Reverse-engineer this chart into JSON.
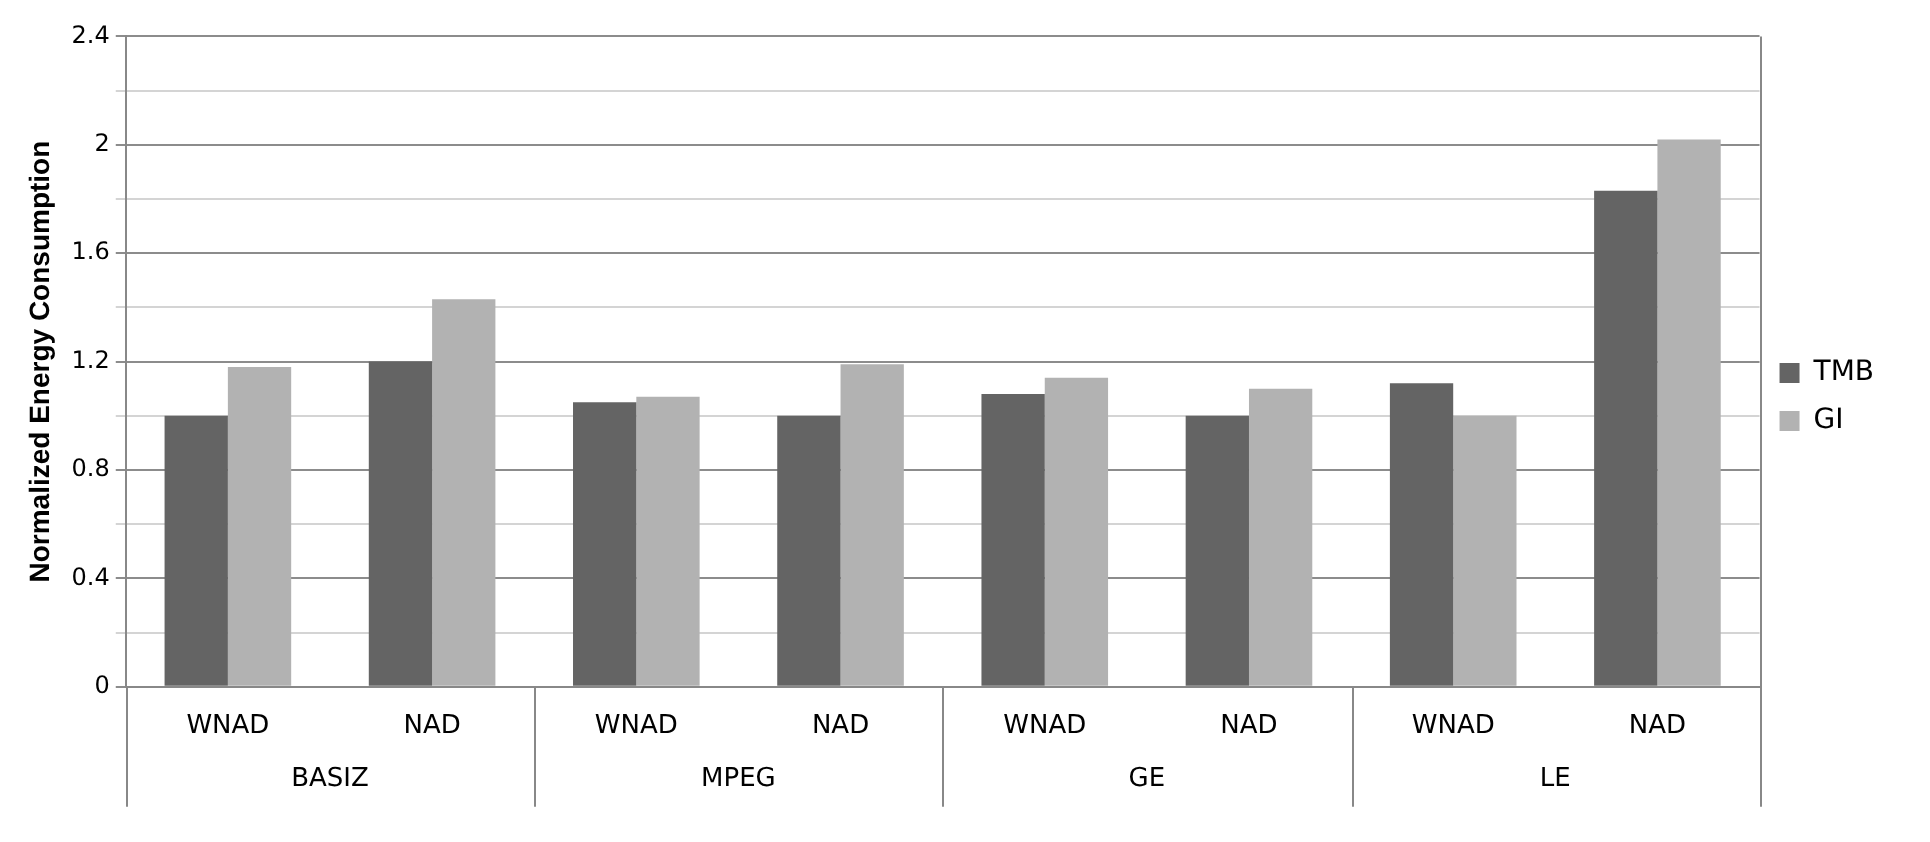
{
  "chart_data": {
    "type": "bar",
    "ylabel": "Normalized Energy Consumption",
    "categories": [
      "WNAD",
      "NAD",
      "WNAD",
      "NAD",
      "WNAD",
      "NAD",
      "WNAD",
      "NAD"
    ],
    "series": [
      {
        "name": "TMB",
        "color": "#646464",
        "values": [
          1.0,
          1.2,
          1.05,
          1.0,
          1.08,
          1.0,
          1.12,
          1.83
        ]
      },
      {
        "name": "GI",
        "color": "#b2b2b2",
        "values": [
          1.18,
          1.43,
          1.07,
          1.19,
          1.14,
          1.1,
          1.0,
          2.02
        ]
      }
    ],
    "annotations": [
      "BASIZ",
      "MPEG",
      "GE",
      "LE"
    ],
    "ylim": [
      0,
      2.4
    ],
    "yticks": [
      0,
      {
        "value": 0.2,
        "label": null
      },
      0.4,
      {
        "value": 0.6,
        "label": null
      },
      0.8,
      {
        "value": 1.0,
        "label": null
      },
      1.2,
      {
        "value": 1.4,
        "label": null
      },
      1.6,
      {
        "value": 1.8,
        "label": null
      },
      2,
      {
        "value": 2.2,
        "label": null
      },
      2.4
    ],
    "grid": true,
    "legend": "right"
  }
}
